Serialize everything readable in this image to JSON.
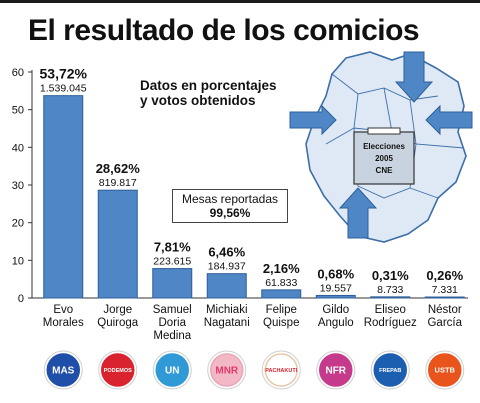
{
  "title": "El resultado de los comicios",
  "caption": {
    "line1": "Datos en porcentajes",
    "line2": "y votos obtenidos"
  },
  "mesas": {
    "label": "Mesas reportadas",
    "value": "99,56%"
  },
  "map_label": {
    "line1": "Elecciones",
    "line2": "2005",
    "line3": "CNE"
  },
  "colors": {
    "bar": "#4f86c6",
    "bar_edge": "#2f5f99",
    "grid": "#bfc8d4",
    "map_fill": "#dfe9f5",
    "map_line": "#3d6ea8",
    "ballot_box": "#c9d3df"
  },
  "chart_data": {
    "type": "bar",
    "title": "El resultado de los comicios",
    "ylim": [
      0,
      60
    ],
    "yticks": [
      0,
      10,
      20,
      30,
      40,
      50,
      60
    ],
    "grid": false,
    "categories": [
      [
        "Evo",
        "Morales"
      ],
      [
        "Jorge",
        "Quiroga"
      ],
      [
        "Samuel",
        "Doria",
        "Medina"
      ],
      [
        "Michiaki",
        "Nagatani"
      ],
      [
        "Felipe",
        "Quispe"
      ],
      [
        "Gildo",
        "Angulo"
      ],
      [
        "Eliseo",
        "Rodríguez"
      ],
      [
        "Néstor",
        "García"
      ]
    ],
    "values": [
      53.72,
      28.62,
      7.81,
      6.46,
      2.16,
      0.68,
      0.31,
      0.26
    ],
    "percent_labels": [
      "53,72%",
      "28,62%",
      "7,81%",
      "6,46%",
      "2,16%",
      "0,68%",
      "0,31%",
      "0,26%"
    ],
    "vote_labels": [
      "1.539.045",
      "819.817",
      "223.615",
      "184.937",
      "61.833",
      "19.557",
      "8.733",
      "7.331"
    ],
    "parties": [
      {
        "text": "MAS",
        "icon": "mas-logo-icon",
        "bg": "#1f4fa8",
        "fg": "#ffffff",
        "ring": "#1f4fa8"
      },
      {
        "text": "PODEMOS",
        "icon": "podemos-star-icon",
        "bg": "#d9232e",
        "fg": "#ffffff",
        "ring": "#d9232e"
      },
      {
        "text": "UN",
        "icon": "un-logo-icon",
        "bg": "#2f9ad6",
        "fg": "#ffffff",
        "ring": "#2f9ad6"
      },
      {
        "text": "MNR",
        "icon": "mnr-hand-icon",
        "bg": "#f2b8c6",
        "fg": "#e23b6b",
        "ring": "#e8a6b8"
      },
      {
        "text": "PACHAKUTI",
        "icon": "pachakuti-sun-icon",
        "bg": "#ffffff",
        "fg": "#d9232e",
        "ring": "#e9c8a8"
      },
      {
        "text": "NFR",
        "icon": "nfr-logo-icon",
        "bg": "#c63a8c",
        "fg": "#ffffff",
        "ring": "#c63a8c"
      },
      {
        "text": "FREPAB",
        "icon": "frepab-logo-icon",
        "bg": "#1c5fb0",
        "fg": "#ffffff",
        "ring": "#1c5fb0"
      },
      {
        "text": "USTB",
        "icon": "ustb-logo-icon",
        "bg": "#e8541c",
        "fg": "#ffffff",
        "ring": "#e8541c"
      }
    ]
  }
}
